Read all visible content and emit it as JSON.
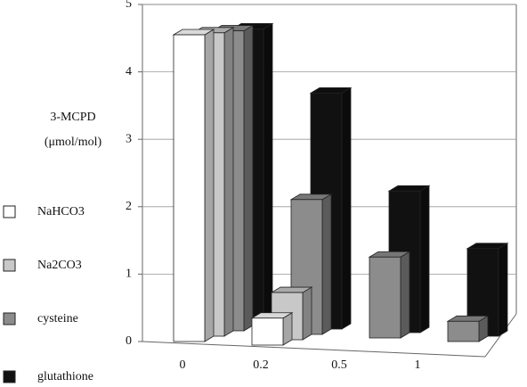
{
  "chart_data": {
    "type": "bar3d",
    "y_label": [
      "3-MCPD",
      "(μmol/mol)"
    ],
    "categories": [
      "0",
      "0.2",
      "0.5",
      "1"
    ],
    "series": [
      {
        "name": "NaHCO3",
        "color": "#ffffff",
        "values": [
          4.55,
          0.4,
          null,
          null
        ]
      },
      {
        "name": "Na2CO3",
        "color": "#c8c8c8",
        "values": [
          4.5,
          0.7,
          null,
          null
        ]
      },
      {
        "name": "cysteine",
        "color": "#8c8c8c",
        "values": [
          4.45,
          2.0,
          1.2,
          0.3
        ]
      },
      {
        "name": "glutathione",
        "color": "#111111",
        "values": [
          4.4,
          3.5,
          2.1,
          1.3
        ]
      }
    ],
    "ylim": [
      0,
      5
    ],
    "yticks": [
      0,
      1,
      2,
      3,
      4,
      5
    ],
    "grid": true
  }
}
